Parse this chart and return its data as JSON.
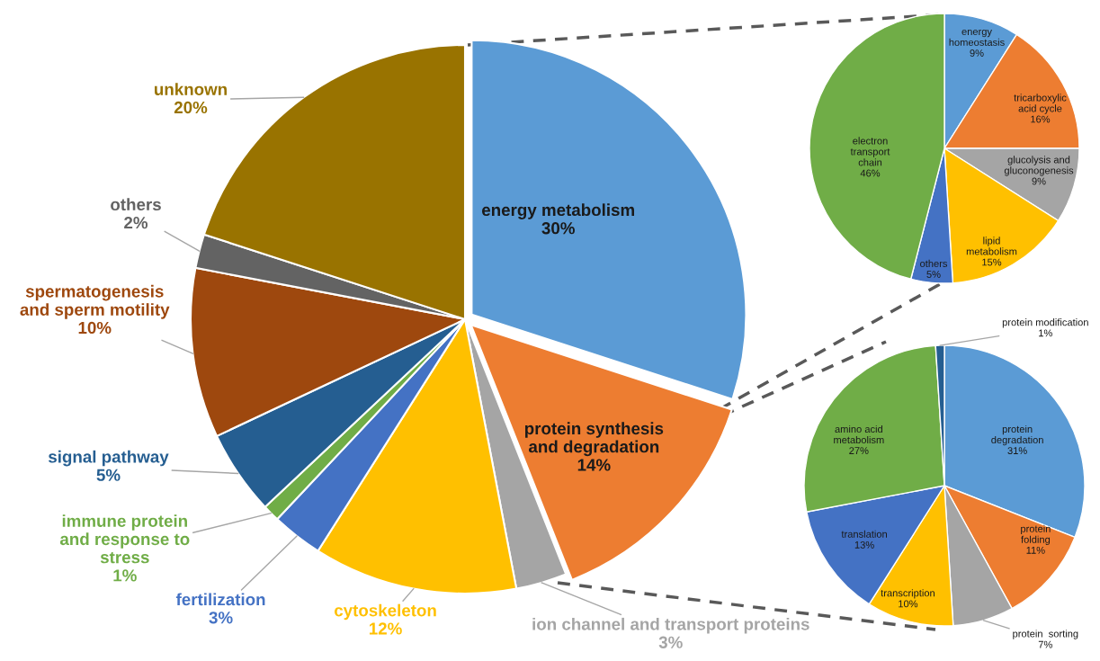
{
  "chart_data": [
    {
      "type": "pie",
      "categories": [
        "energy metabolism",
        "protein synthesis\nand degradation",
        "ion channel and transport proteins",
        "cytoskeleton",
        "fertilization",
        "immune protein\nand response to\nstress",
        "signal pathway",
        "spermatogenesis\nand sperm motility",
        "others",
        "unknown"
      ],
      "values": [
        30,
        14,
        3,
        12,
        3,
        1,
        5,
        10,
        2,
        20
      ],
      "value_labels": [
        "30%",
        "14%",
        "3%",
        "12%",
        "3%",
        "1%",
        "5%",
        "10%",
        "2%",
        "20%"
      ],
      "colors": [
        "#5b9bd5",
        "#ed7d31",
        "#a5a5a5",
        "#ffc000",
        "#4472c4",
        "#70ad47",
        "#255e91",
        "#9e480e",
        "#636363",
        "#997300"
      ]
    },
    {
      "type": "pie",
      "categories": [
        "energy\nhomeostasis",
        "tricarboxylic\nacid cycle",
        "glucolysis and\ngluconogenesis",
        "lipid\nmetabolism",
        "others",
        "electron\ntransport\nchain"
      ],
      "values": [
        9,
        16,
        9,
        15,
        5,
        46
      ],
      "value_labels": [
        "9%",
        "16%",
        "9%",
        "15%",
        "5%",
        "46%"
      ],
      "colors": [
        "#5b9bd5",
        "#ed7d31",
        "#a5a5a5",
        "#ffc000",
        "#4472c4",
        "#70ad47"
      ]
    },
    {
      "type": "pie",
      "categories": [
        "protein\ndegradation",
        "protein\nfolding",
        "protein  sorting",
        "transcription",
        "translation",
        "amino acid\nmetabolism",
        "protein modification"
      ],
      "values": [
        31,
        11,
        7,
        10,
        13,
        27,
        1
      ],
      "value_labels": [
        "31%",
        "11%",
        "7%",
        "10%",
        "13%",
        "27%",
        "1%"
      ],
      "colors": [
        "#5b9bd5",
        "#ed7d31",
        "#a5a5a5",
        "#ffc000",
        "#4472c4",
        "#70ad47",
        "#255e91"
      ]
    }
  ]
}
